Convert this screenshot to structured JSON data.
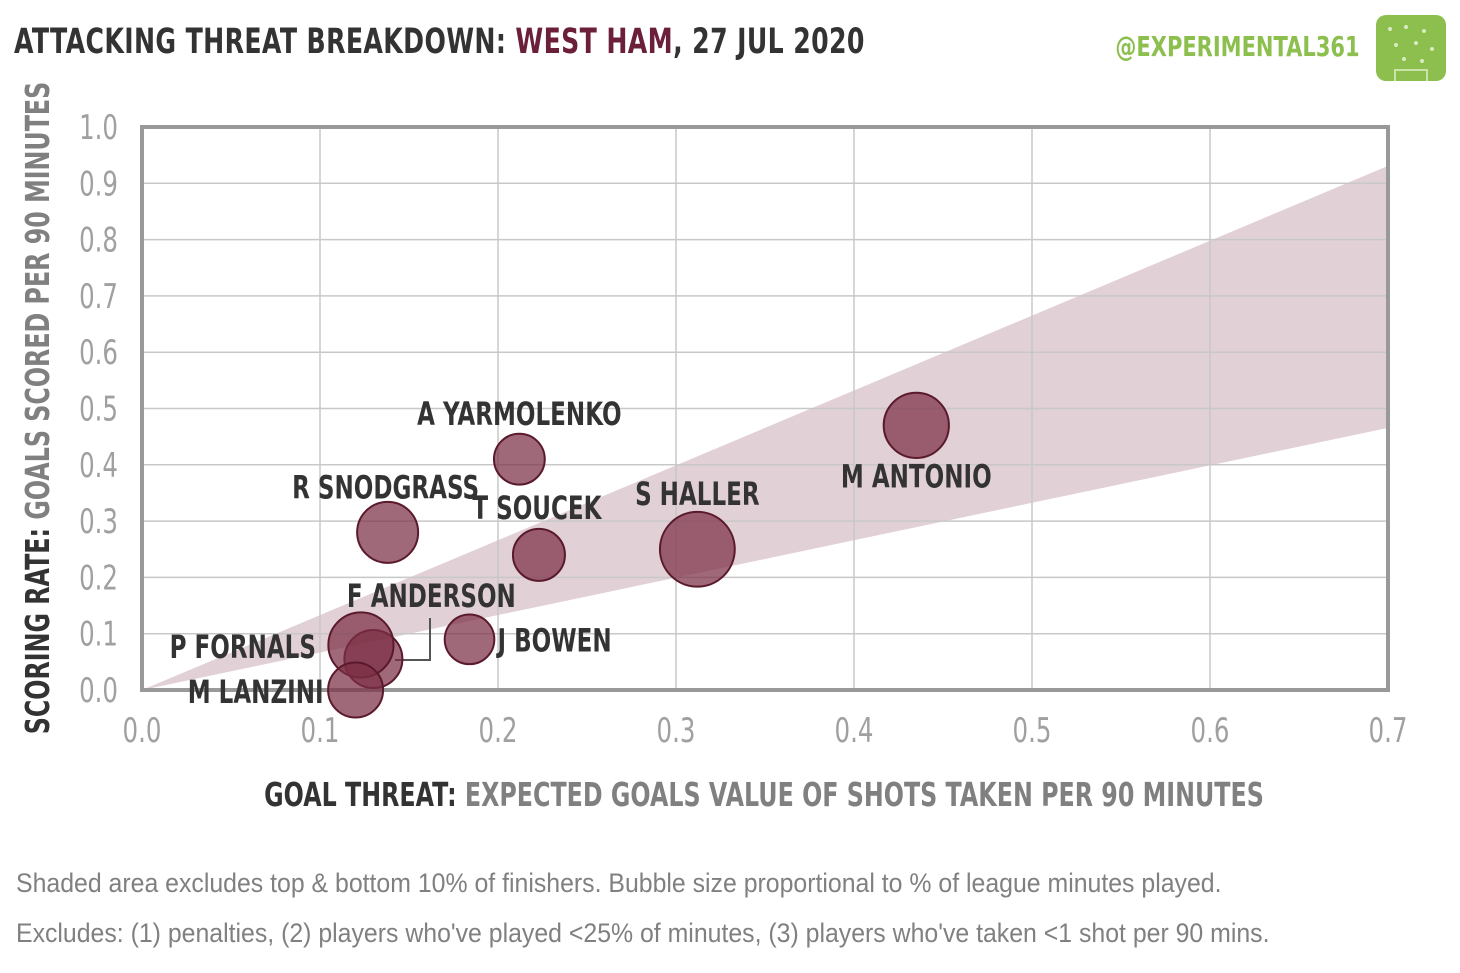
{
  "header": {
    "title_prefix": "ATTACKING THREAT BREAKDOWN:",
    "team": "WEST HAM",
    "date": ", 27 JUL 2020",
    "handle": "@EXPERIMENTAL361"
  },
  "colors": {
    "team": "#6b1f3a",
    "bubble_fill": "#7b2f45",
    "bubble_stroke": "#5a1a2c",
    "band": "#dcc8cf",
    "grid": "#c8c8c8",
    "frame": "#999999",
    "brand": "#8cbf4e"
  },
  "footnotes": [
    "Shaded area excludes top & bottom 10% of finishers. Bubble size proportional to % of league minutes played.",
    "Excludes: (1) penalties, (2) players who've played <25% of minutes, (3) players who've taken <1 shot per 90 mins."
  ],
  "chart_data": {
    "type": "scatter",
    "xlabel_bold": "GOAL THREAT:",
    "xlabel": "EXPECTED GOALS VALUE OF SHOTS TAKEN PER 90 MINUTES",
    "ylabel_bold": "SCORING RATE:",
    "ylabel": "GOALS SCORED PER 90 MINUTES",
    "xlim": [
      0.0,
      0.7
    ],
    "ylim": [
      0.0,
      1.0
    ],
    "xticks": [
      "0.0",
      "0.1",
      "0.2",
      "0.3",
      "0.4",
      "0.5",
      "0.6",
      "0.7"
    ],
    "yticks": [
      "0.0",
      "0.1",
      "0.2",
      "0.3",
      "0.4",
      "0.5",
      "0.6",
      "0.7",
      "0.8",
      "0.9",
      "1.0"
    ],
    "grid": true,
    "band": {
      "upper_slope": 1.33,
      "lower_slope": 0.665
    },
    "points": [
      {
        "name": "M ANTONIO",
        "x": 0.435,
        "y": 0.47,
        "size": 0.62
      },
      {
        "name": "S HALLER",
        "x": 0.312,
        "y": 0.25,
        "size": 0.78
      },
      {
        "name": "A YARMOLENKO",
        "x": 0.212,
        "y": 0.41,
        "size": 0.38
      },
      {
        "name": "R SNODGRASS",
        "x": 0.138,
        "y": 0.28,
        "size": 0.55
      },
      {
        "name": "T SOUCEK",
        "x": 0.223,
        "y": 0.24,
        "size": 0.4
      },
      {
        "name": "J BOWEN",
        "x": 0.184,
        "y": 0.09,
        "size": 0.36
      },
      {
        "name": "F ANDERSON",
        "x": 0.13,
        "y": 0.055,
        "size": 0.5
      },
      {
        "name": "P FORNALS",
        "x": 0.123,
        "y": 0.08,
        "size": 0.62
      },
      {
        "name": "M LANZINI",
        "x": 0.12,
        "y": 0.0,
        "size": 0.45
      }
    ]
  }
}
